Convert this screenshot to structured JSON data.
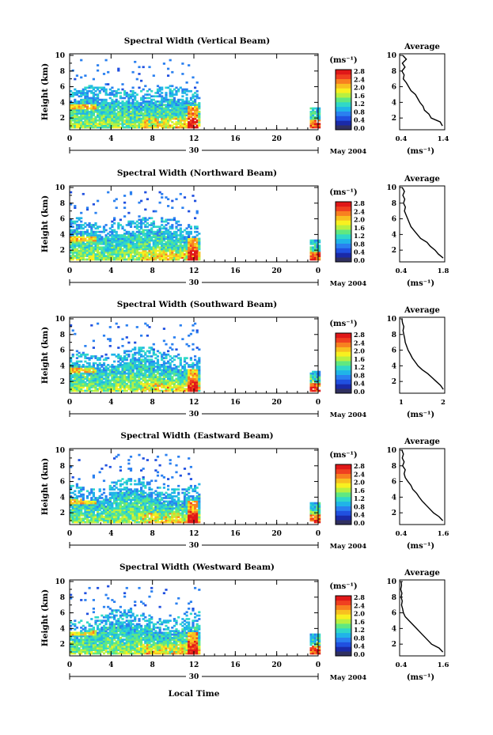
{
  "figure": {
    "xlabel": "Local Time",
    "x_ticks": [
      "0",
      "4",
      "8",
      "12",
      "16",
      "20",
      "0"
    ],
    "day_label": "30",
    "month_year": "May 2004",
    "ylabel": "Height (km)",
    "y_ticks": [
      "2",
      "4",
      "6",
      "8",
      "10"
    ],
    "unit_label": "(ms⁻¹)",
    "avg_title": "Average",
    "avg_xlabel": "(ms⁻¹)"
  },
  "colorbar": {
    "tick_labels": [
      "0.0",
      "0.4",
      "0.8",
      "1.2",
      "1.6",
      "2.0",
      "2.4",
      "2.8"
    ],
    "colors": [
      "#303060",
      "#1a2aa8",
      "#2050e0",
      "#2a80f0",
      "#20b4e8",
      "#30d8c8",
      "#60e880",
      "#b8f040",
      "#f8f020",
      "#f8c020",
      "#f88020",
      "#f04020",
      "#e01818"
    ]
  },
  "chart_data": [
    {
      "type": "heatmap",
      "title": "Spectral Width (Vertical Beam)",
      "ylim": [
        0.5,
        10.2
      ],
      "xlim": [
        0,
        24
      ],
      "avg_profile": {
        "xlim": [
          0.4,
          1.4
        ],
        "tick_labels": [
          "0.4",
          "1.4"
        ],
        "height": [
          1.0,
          1.5,
          2.0,
          2.5,
          3.0,
          3.5,
          4.0,
          4.5,
          5.0,
          5.5,
          6.0,
          6.5,
          7.0,
          7.5,
          8.0,
          8.5,
          9.0,
          9.5,
          10.0
        ],
        "width": [
          1.35,
          1.3,
          1.1,
          1.05,
          0.95,
          0.92,
          0.85,
          0.8,
          0.75,
          0.65,
          0.6,
          0.55,
          0.48,
          0.5,
          0.45,
          0.52,
          0.46,
          0.55,
          0.47
        ]
      }
    },
    {
      "type": "heatmap",
      "title": "Spectral Width (Northward Beam)",
      "ylim": [
        0.5,
        10.2
      ],
      "xlim": [
        0,
        24
      ],
      "avg_profile": {
        "xlim": [
          0.4,
          1.8
        ],
        "tick_labels": [
          "0.4",
          "1.8"
        ],
        "height": [
          1.0,
          1.5,
          2.0,
          2.5,
          3.0,
          3.5,
          4.0,
          4.5,
          5.0,
          5.5,
          6.0,
          6.5,
          7.0,
          7.5,
          8.0,
          8.5,
          9.0,
          9.5,
          10.0
        ],
        "width": [
          1.75,
          1.6,
          1.5,
          1.35,
          1.25,
          1.05,
          0.95,
          0.85,
          0.75,
          0.7,
          0.65,
          0.6,
          0.55,
          0.58,
          0.52,
          0.56,
          0.5,
          0.55,
          0.48
        ]
      }
    },
    {
      "type": "heatmap",
      "title": "Spectral Width (Southward Beam)",
      "ylim": [
        0.5,
        10.2
      ],
      "xlim": [
        0,
        24
      ],
      "avg_profile": {
        "xlim": [
          0.4,
          2.0
        ],
        "tick_labels": [
          "1",
          "2"
        ],
        "height": [
          1.0,
          1.5,
          2.0,
          2.5,
          3.0,
          3.5,
          4.0,
          4.5,
          5.0,
          5.5,
          6.0,
          6.5,
          7.0,
          7.5,
          8.0,
          8.5,
          9.0,
          9.5,
          10.0
        ],
        "width": [
          1.95,
          1.85,
          1.7,
          1.55,
          1.4,
          1.2,
          1.05,
          0.95,
          0.85,
          0.78,
          0.7,
          0.65,
          0.6,
          0.58,
          0.55,
          0.52,
          0.55,
          0.5,
          0.48
        ]
      }
    },
    {
      "type": "heatmap",
      "title": "Spectral Width (Eastward Beam)",
      "ylim": [
        0.5,
        10.2
      ],
      "xlim": [
        0,
        24
      ],
      "avg_profile": {
        "xlim": [
          0.4,
          1.6
        ],
        "tick_labels": [
          "0.4",
          "1.6"
        ],
        "height": [
          1.0,
          1.5,
          2.0,
          2.5,
          3.0,
          3.5,
          4.0,
          4.5,
          5.0,
          5.5,
          6.0,
          6.5,
          7.0,
          7.5,
          8.0,
          8.5,
          9.0,
          9.5,
          10.0
        ],
        "width": [
          1.55,
          1.45,
          1.3,
          1.2,
          1.1,
          1.0,
          0.92,
          0.85,
          0.75,
          0.7,
          0.62,
          0.55,
          0.52,
          0.55,
          0.48,
          0.52,
          0.47,
          0.5,
          0.46
        ]
      }
    },
    {
      "type": "heatmap",
      "title": "Spectral Width (Westward Beam)",
      "ylim": [
        0.5,
        10.2
      ],
      "xlim": [
        0,
        24
      ],
      "avg_profile": {
        "xlim": [
          0.4,
          1.6
        ],
        "tick_labels": [
          "0.4",
          "1.6"
        ],
        "height": [
          1.0,
          1.5,
          2.0,
          2.5,
          3.0,
          3.5,
          4.0,
          4.5,
          5.0,
          5.5,
          6.0,
          6.5,
          7.0,
          7.5,
          8.0,
          8.5,
          9.0,
          9.5,
          10.0
        ],
        "width": [
          1.55,
          1.45,
          1.25,
          1.15,
          1.05,
          0.95,
          0.85,
          0.75,
          0.65,
          0.55,
          0.5,
          0.48,
          0.45,
          0.47,
          0.44,
          0.46,
          0.43,
          0.45,
          0.44
        ]
      }
    }
  ]
}
